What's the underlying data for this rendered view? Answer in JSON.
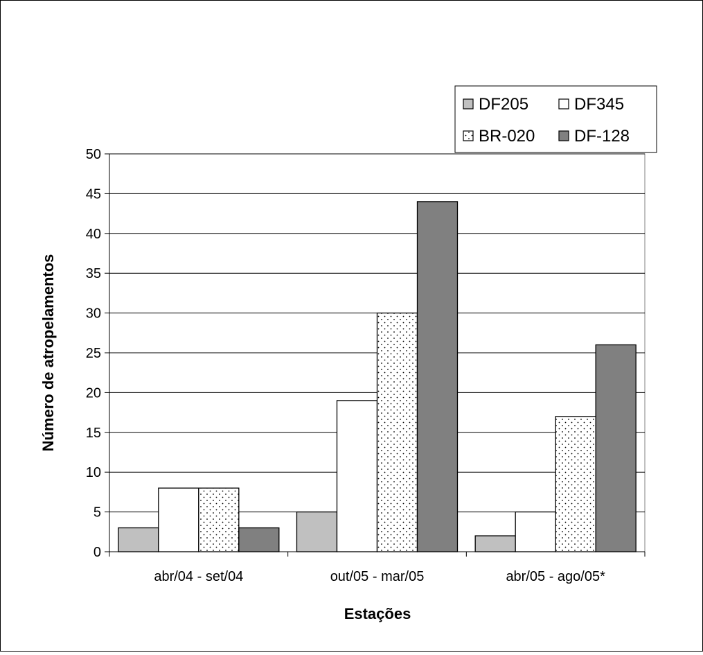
{
  "chart_data": {
    "type": "bar",
    "title": "",
    "xlabel": "Estações",
    "ylabel": "Número de atropelamentos",
    "categories": [
      "abr/04 - set/04",
      "out/05 - mar/05",
      "abr/05 - ago/05*"
    ],
    "series": [
      {
        "name": "DF205",
        "values": [
          3,
          5,
          2
        ],
        "color": "#c0c0c0",
        "pattern": "solid"
      },
      {
        "name": "DF345",
        "values": [
          8,
          19,
          5
        ],
        "color": "#ffffff",
        "pattern": "solid"
      },
      {
        "name": "BR-020",
        "values": [
          8,
          30,
          17
        ],
        "color": "#ffffff",
        "pattern": "dotted"
      },
      {
        "name": "DF-128",
        "values": [
          3,
          44,
          26
        ],
        "color": "#808080",
        "pattern": "solid"
      }
    ],
    "ylim": [
      0,
      50
    ],
    "yticks": [
      0,
      5,
      10,
      15,
      20,
      25,
      30,
      35,
      40,
      45,
      50
    ],
    "grid": true,
    "legend_position": "top-right"
  }
}
